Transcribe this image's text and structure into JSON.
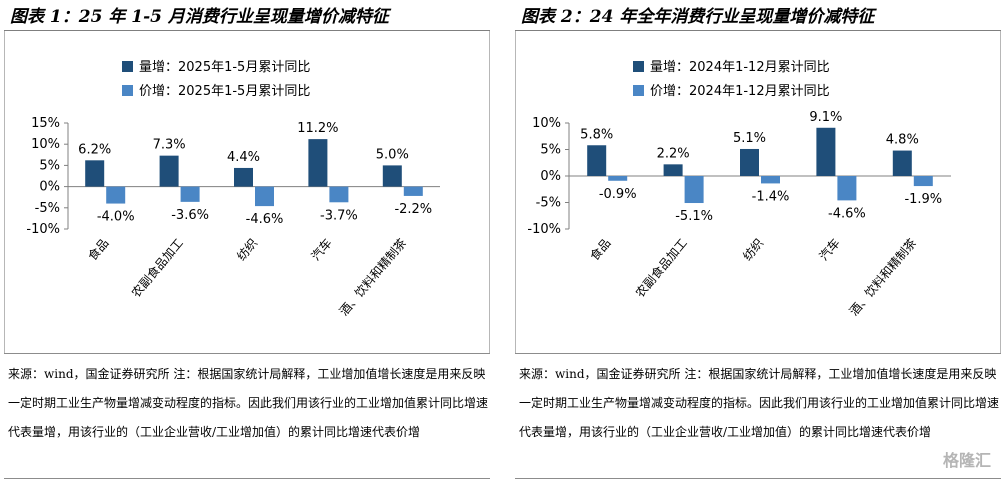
{
  "panels": [
    {
      "title": "图表 1：25 年 1-5 月消费行业呈现量增价减特征",
      "source": "来源：wind，国金证券研究所 注：根据国家统计局解释，工业增加值增长速度是用来反映一定时期工业生产物量增减变动程度的指标。因此我们用该行业的工业增加值累计同比增速代表量增，用该行业的（工业企业营收/工业增加值）的累计同比增速代表价增"
    },
    {
      "title": "图表 2：24 年全年消费行业呈现量增价减特征",
      "source": "来源：wind，国金证券研究所 注：根据国家统计局解释，工业增加值增长速度是用来反映一定时期工业生产物量增减变动程度的指标。因此我们用该行业的工业增加值累计同比增速代表量增，用该行业的（工业企业营收/工业增加值）的累计同比增速代表价增"
    }
  ],
  "watermark": "格隆汇",
  "chart_data": [
    {
      "type": "bar",
      "categories": [
        "食品",
        "农副食品加工",
        "纺织",
        "汽车",
        "酒、饮料和精制茶"
      ],
      "series": [
        {
          "name": "量增：2025年1-5月累计同比",
          "color": "#1f4e79",
          "values": [
            6.2,
            7.3,
            4.4,
            11.2,
            5.0
          ],
          "labels": [
            "6.2%",
            "7.3%",
            "4.4%",
            "11.2%",
            "5.0%"
          ]
        },
        {
          "name": "价增：2025年1-5月累计同比",
          "color": "#4a86c5",
          "values": [
            -4.0,
            -3.6,
            -4.6,
            -3.7,
            -2.2
          ],
          "labels": [
            "-4.0%",
            "-3.6%",
            "-4.6%",
            "-3.7%",
            "-2.2%"
          ]
        }
      ],
      "ylim": [
        -10,
        15
      ],
      "yticks": [
        15,
        10,
        5,
        0,
        -5,
        -10
      ],
      "ytick_labels": [
        "15%",
        "10%",
        "5%",
        "0%",
        "-5%",
        "-10%"
      ],
      "legend": "top-center",
      "grid": false
    },
    {
      "type": "bar",
      "categories": [
        "食品",
        "农副食品加工",
        "纺织",
        "汽车",
        "酒、饮料和精制茶"
      ],
      "series": [
        {
          "name": "量增：2024年1-12月累计同比",
          "color": "#1f4e79",
          "values": [
            5.8,
            2.2,
            5.1,
            9.1,
            4.8
          ],
          "labels": [
            "5.8%",
            "2.2%",
            "5.1%",
            "9.1%",
            "4.8%"
          ]
        },
        {
          "name": "价增：2024年1-12月累计同比",
          "color": "#4a86c5",
          "values": [
            -0.9,
            -5.1,
            -1.4,
            -4.6,
            -1.9
          ],
          "labels": [
            "-0.9%",
            "-5.1%",
            "-1.4%",
            "-4.6%",
            "-1.9%"
          ]
        }
      ],
      "ylim": [
        -10,
        10
      ],
      "yticks": [
        10,
        5,
        0,
        -5,
        -10
      ],
      "ytick_labels": [
        "10%",
        "5%",
        "0%",
        "-5%",
        "-10%"
      ],
      "legend": "top-center",
      "grid": false
    }
  ]
}
